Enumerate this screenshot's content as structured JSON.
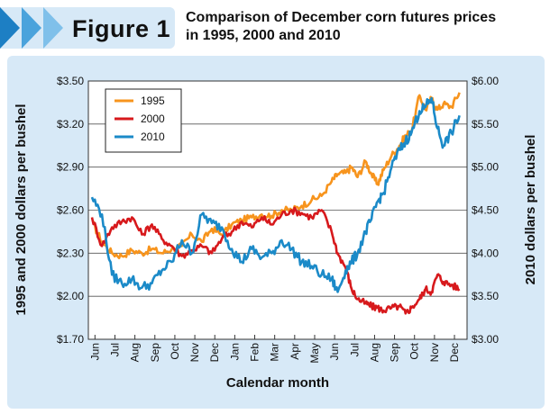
{
  "header": {
    "figure_label": "Figure 1",
    "title_line1": "Comparison of December corn futures prices",
    "title_line2": "in 1995, 2000 and 2010"
  },
  "colors": {
    "1995": "#f7941d",
    "2000": "#d7191c",
    "2010": "#1b8ac8",
    "panel": "#d7e9f7",
    "chevrons": [
      "#1d7fc4",
      "#4aa3dc",
      "#7fc0ea"
    ]
  },
  "chart_data": {
    "type": "line",
    "title": "Comparison of December corn futures prices in 1995, 2000 and 2010",
    "xlabel": "Calendar month",
    "ylabel": "1995 and 2000 dollars per bushel",
    "y2label": "2010 dollars per bushel",
    "categories": [
      "Jun",
      "Jul",
      "Aug",
      "Sep",
      "Oct",
      "Nov",
      "Dec",
      "Jan",
      "Feb",
      "Mar",
      "Apr",
      "May",
      "Jun",
      "Jul",
      "Aug",
      "Sep",
      "Oct",
      "Nov",
      "Dec"
    ],
    "ylim": [
      1.7,
      3.5
    ],
    "y_ticks": [
      "$3.50",
      "$3.20",
      "$2.90",
      "$2.60",
      "$2.30",
      "$2.00",
      "$1.70"
    ],
    "y2lim": [
      3.0,
      6.0
    ],
    "y2_ticks": [
      "$6.00",
      "$5.50",
      "$5.00",
      "$4.50",
      "$4.00",
      "$3.50",
      "$3.00"
    ],
    "grid": true,
    "legend_position": "top-left",
    "series": [
      {
        "name": "1995",
        "axis": "left",
        "x": [
          0,
          0.5,
          1,
          1.5,
          2,
          2.5,
          3,
          3.5,
          4,
          4.5,
          5,
          5.5,
          6,
          6.5,
          7,
          7.5,
          8,
          8.5,
          9,
          9.5,
          10,
          10.5,
          11,
          11.5,
          12,
          12.3,
          12.7,
          13,
          13.3,
          13.7,
          14,
          14.3,
          14.6,
          15,
          15.4,
          15.7,
          16,
          16.4,
          16.7,
          17,
          17.3,
          17.6,
          18,
          18.4
        ],
        "y": [
          2.52,
          2.38,
          2.3,
          2.28,
          2.32,
          2.3,
          2.33,
          2.3,
          2.33,
          2.35,
          2.43,
          2.38,
          2.47,
          2.43,
          2.5,
          2.53,
          2.55,
          2.57,
          2.56,
          2.6,
          2.6,
          2.63,
          2.67,
          2.7,
          2.8,
          2.85,
          2.86,
          2.9,
          2.83,
          2.94,
          2.85,
          2.78,
          2.88,
          2.98,
          3.05,
          3.12,
          3.15,
          3.4,
          3.3,
          3.38,
          3.3,
          3.34,
          3.32,
          3.42
        ]
      },
      {
        "name": "2000",
        "axis": "left",
        "x": [
          0,
          0.5,
          1,
          1.5,
          2,
          2.5,
          3,
          3.5,
          4,
          4.5,
          5,
          5.5,
          6,
          6.5,
          7,
          7.5,
          8,
          8.5,
          9,
          9.5,
          10,
          10.5,
          11,
          11.5,
          12,
          12.3,
          12.7,
          13,
          13.3,
          13.7,
          14,
          14.3,
          14.6,
          15,
          15.4,
          15.7,
          16,
          16.4,
          16.7,
          17,
          17.3,
          17.6,
          18,
          18.4
        ],
        "y": [
          2.55,
          2.35,
          2.48,
          2.52,
          2.55,
          2.43,
          2.5,
          2.4,
          2.35,
          2.28,
          2.32,
          2.35,
          2.3,
          2.4,
          2.45,
          2.52,
          2.48,
          2.55,
          2.5,
          2.57,
          2.6,
          2.58,
          2.55,
          2.6,
          2.45,
          2.3,
          2.2,
          2.05,
          1.98,
          1.95,
          1.93,
          1.92,
          1.9,
          1.92,
          1.93,
          1.88,
          1.92,
          1.98,
          2.05,
          2.03,
          2.15,
          2.1,
          2.08,
          2.05
        ]
      },
      {
        "name": "2010",
        "axis": "right",
        "x": [
          0,
          0.5,
          1,
          1.5,
          2,
          2.5,
          3,
          3.5,
          4,
          4.5,
          5,
          5.5,
          6,
          6.5,
          7,
          7.5,
          8,
          8.5,
          9,
          9.5,
          10,
          10.5,
          11,
          11.5,
          12,
          12.3,
          12.7,
          13,
          13.3,
          13.7,
          14,
          14.3,
          14.6,
          15,
          15.4,
          15.7,
          16,
          16.4,
          16.7,
          17,
          17.3,
          17.6,
          18,
          18.4
        ],
        "y": [
          4.65,
          4.45,
          3.75,
          3.65,
          3.7,
          3.6,
          3.65,
          3.8,
          3.9,
          4.15,
          4.0,
          4.45,
          4.35,
          4.3,
          4.05,
          3.9,
          4.05,
          3.95,
          4.0,
          4.15,
          4.05,
          3.9,
          3.85,
          3.75,
          3.7,
          3.55,
          3.8,
          3.9,
          4.0,
          4.25,
          4.4,
          4.6,
          4.7,
          5.0,
          5.2,
          5.3,
          5.4,
          5.65,
          5.7,
          5.8,
          5.45,
          5.25,
          5.4,
          5.6
        ]
      }
    ]
  }
}
